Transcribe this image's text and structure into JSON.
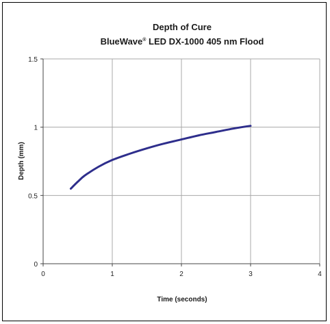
{
  "chart_data": {
    "type": "line",
    "title": "Depth of Cure",
    "subtitle_prefix": "BlueWave",
    "subtitle_mark": "®",
    "subtitle_suffix": " LED DX-1000 405 nm Flood",
    "xlabel": "Time (seconds)",
    "ylabel": "Depth (mm)",
    "xlim": [
      0,
      4
    ],
    "ylim": [
      0,
      1.5
    ],
    "x_ticks": [
      "0",
      "1",
      "2",
      "3",
      "4"
    ],
    "y_ticks": [
      "0",
      "0.5",
      "1",
      "1.5"
    ],
    "grid": true,
    "legend": "none",
    "series": [
      {
        "color": "#2e2e8c",
        "x": [
          0.4,
          0.5,
          0.6,
          0.8,
          1.0,
          1.25,
          1.5,
          1.75,
          2.0,
          2.25,
          2.5,
          2.75,
          3.0
        ],
        "y": [
          0.55,
          0.6,
          0.645,
          0.71,
          0.76,
          0.805,
          0.845,
          0.88,
          0.91,
          0.94,
          0.965,
          0.99,
          1.01
        ]
      }
    ]
  }
}
